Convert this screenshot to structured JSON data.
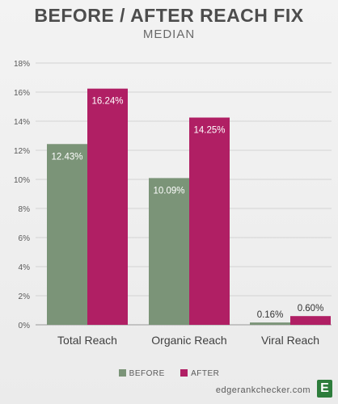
{
  "chart_data": {
    "type": "bar",
    "title": "BEFORE / AFTER REACH FIX",
    "subtitle": "MEDIAN",
    "categories": [
      "Total Reach",
      "Organic Reach",
      "Viral Reach"
    ],
    "series": [
      {
        "name": "BEFORE",
        "color": "#7b9478",
        "values": [
          12.43,
          10.09,
          0.16
        ],
        "labels": [
          "12.43%",
          "10.09%",
          "0.16%"
        ]
      },
      {
        "name": "AFTER",
        "color": "#b01f64",
        "values": [
          16.24,
          14.25,
          0.6
        ],
        "labels": [
          "16.24%",
          "14.25%",
          "0.60%"
        ]
      }
    ],
    "ylim": [
      0,
      18
    ],
    "yticks": [
      0,
      2,
      4,
      6,
      8,
      10,
      12,
      14,
      16,
      18
    ],
    "ytick_labels": [
      "0%",
      "2%",
      "4%",
      "6%",
      "8%",
      "10%",
      "12%",
      "14%",
      "16%",
      "18%"
    ],
    "grid": true,
    "legend_position": "bottom"
  },
  "footer": {
    "site": "edgerankchecker.com",
    "logo_letter": "E"
  }
}
